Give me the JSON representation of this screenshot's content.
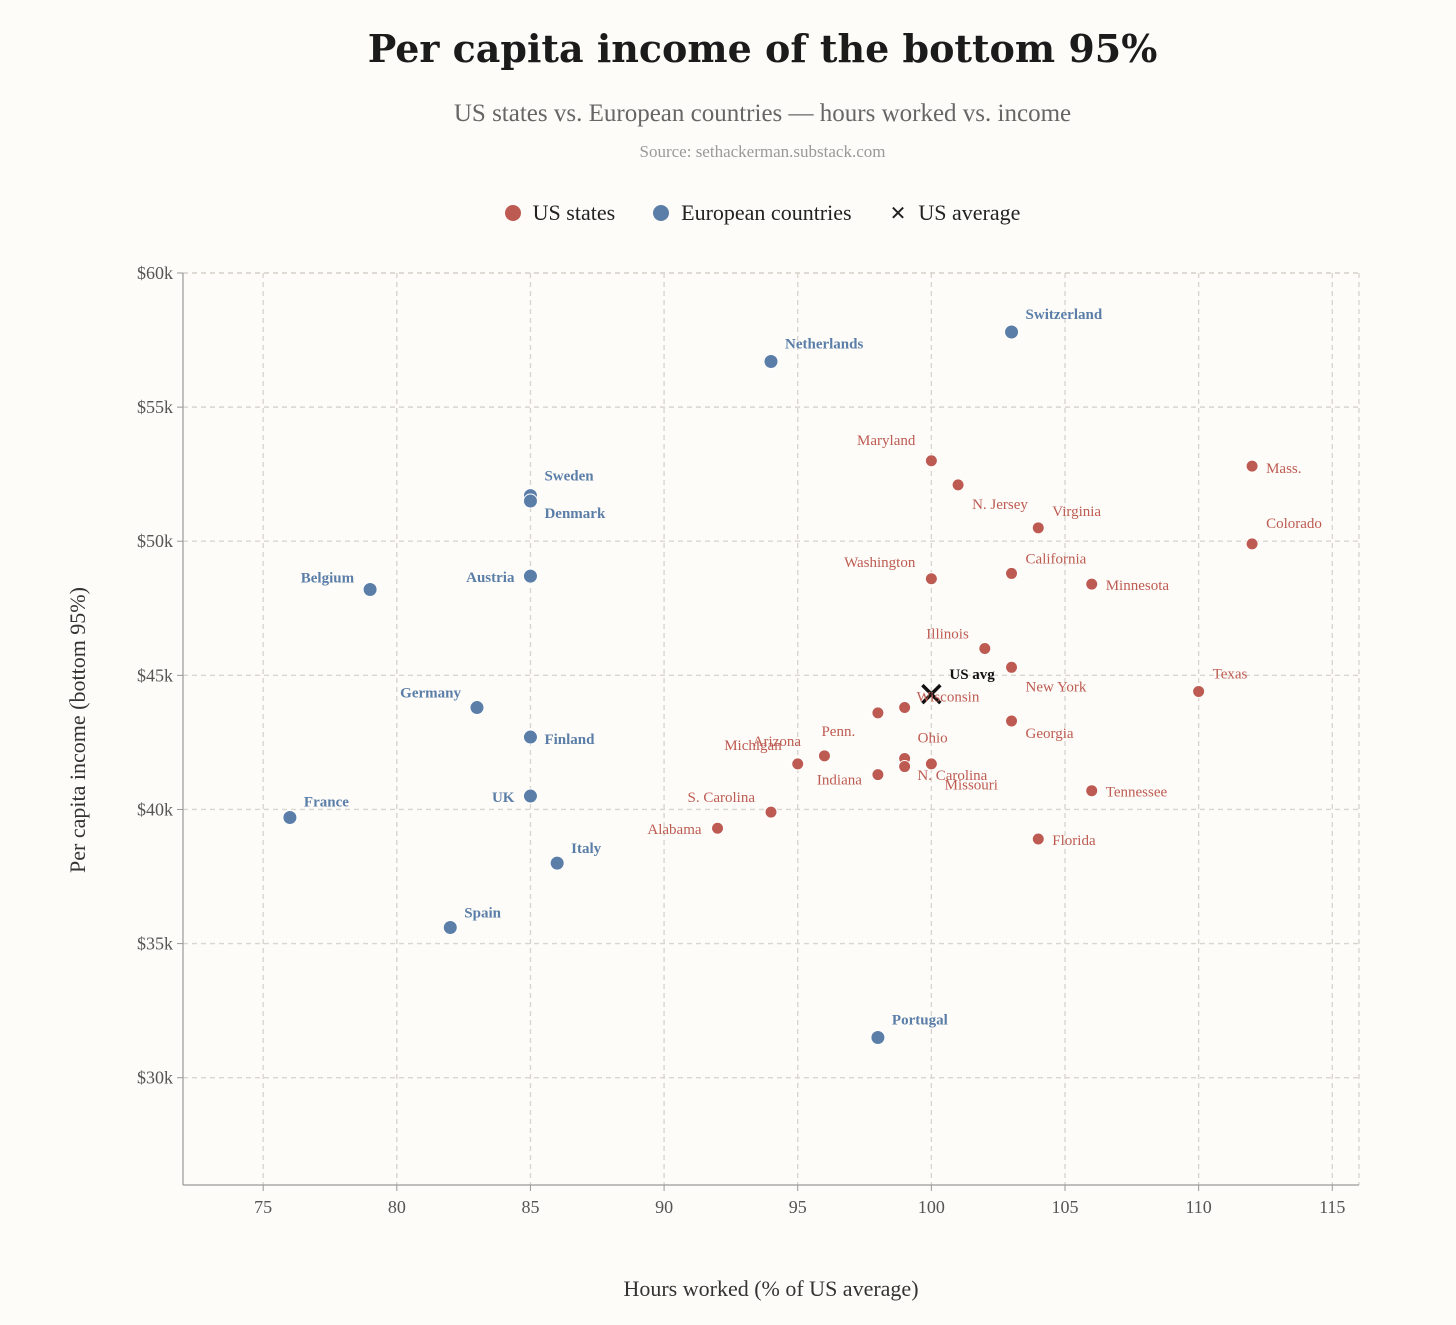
{
  "title": "Per capita income of the bottom 95%",
  "subtitle": "US states vs. European countries — hours worked vs. income",
  "source": "Source: sethackerman.substack.com",
  "legend": {
    "us_states": "US states",
    "european": "European countries",
    "us_average": "US average"
  },
  "colors": {
    "us_states": "#bd5b52",
    "european": "#5b7ea8",
    "us_average": "#111111",
    "grid": "#d9d6cf",
    "axis": "#999999"
  },
  "chart_data": {
    "type": "scatter",
    "title": "Per capita income of the bottom 95%",
    "xlabel": "Hours worked (% of US average)",
    "ylabel": "Per capita income (bottom 95%)",
    "xlim": [
      72,
      116
    ],
    "ylim": [
      26,
      60
    ],
    "grid": true,
    "legend_position": "top",
    "x_ticks": [
      75,
      80,
      85,
      90,
      95,
      100,
      105,
      110,
      115
    ],
    "x_tick_labels": [
      "75",
      "80",
      "85",
      "90",
      "95",
      "100",
      "105",
      "110",
      "115"
    ],
    "y_ticks": [
      30,
      35,
      40,
      45,
      50,
      55,
      60
    ],
    "y_tick_labels": [
      "$30k",
      "$35k",
      "$40k",
      "$45k",
      "$50k",
      "$55k",
      "$60k"
    ],
    "series": [
      {
        "name": "US states",
        "points": [
          {
            "label": "Maryland",
            "x": 100,
            "y": 53.0
          },
          {
            "label": "N. Jersey",
            "x": 101,
            "y": 52.1
          },
          {
            "label": "Mass.",
            "x": 112,
            "y": 52.8
          },
          {
            "label": "Virginia",
            "x": 104,
            "y": 50.5
          },
          {
            "label": "Colorado",
            "x": 112,
            "y": 49.9
          },
          {
            "label": "Washington",
            "x": 100,
            "y": 48.6
          },
          {
            "label": "California",
            "x": 103,
            "y": 48.8
          },
          {
            "label": "Minnesota",
            "x": 106,
            "y": 48.4
          },
          {
            "label": "Illinois",
            "x": 102,
            "y": 46.0
          },
          {
            "label": "New York",
            "x": 103,
            "y": 45.3
          },
          {
            "label": "Texas",
            "x": 110,
            "y": 44.4
          },
          {
            "label": "Wisconsin",
            "x": 99,
            "y": 43.8
          },
          {
            "label": "",
            "x": 98,
            "y": 43.6
          },
          {
            "label": "Georgia",
            "x": 103,
            "y": 43.3
          },
          {
            "label": "Penn.",
            "x": 96,
            "y": 42.0
          },
          {
            "label": "Ohio",
            "x": 99,
            "y": 41.9
          },
          {
            "label": "Arizona",
            "x": 95,
            "y": 41.7
          },
          {
            "label": "Michigan",
            "x": 95,
            "y": 41.7
          },
          {
            "label": "N. Carolina",
            "x": 100,
            "y": 41.7
          },
          {
            "label": "Missouri",
            "x": 99,
            "y": 41.6
          },
          {
            "label": "Indiana",
            "x": 98,
            "y": 41.3
          },
          {
            "label": "Tennessee",
            "x": 106,
            "y": 40.7
          },
          {
            "label": "S. Carolina",
            "x": 94,
            "y": 39.9
          },
          {
            "label": "Alabama",
            "x": 92,
            "y": 39.3
          },
          {
            "label": "Florida",
            "x": 104,
            "y": 38.9
          }
        ]
      },
      {
        "name": "European countries",
        "points": [
          {
            "label": "Switzerland",
            "x": 103,
            "y": 57.8
          },
          {
            "label": "Netherlands",
            "x": 94,
            "y": 56.7
          },
          {
            "label": "Sweden",
            "x": 85,
            "y": 51.7
          },
          {
            "label": "Denmark",
            "x": 85,
            "y": 51.5
          },
          {
            "label": "Austria",
            "x": 85,
            "y": 48.7
          },
          {
            "label": "Belgium",
            "x": 79,
            "y": 48.2
          },
          {
            "label": "Germany",
            "x": 83,
            "y": 43.8
          },
          {
            "label": "Finland",
            "x": 85,
            "y": 42.7
          },
          {
            "label": "UK",
            "x": 85,
            "y": 40.5
          },
          {
            "label": "France",
            "x": 76,
            "y": 39.7
          },
          {
            "label": "Italy",
            "x": 86,
            "y": 38.0
          },
          {
            "label": "Spain",
            "x": 82,
            "y": 35.6
          },
          {
            "label": "Portugal",
            "x": 98,
            "y": 31.5
          }
        ]
      },
      {
        "name": "US average",
        "points": [
          {
            "label": "US avg",
            "x": 100,
            "y": 44.3
          }
        ]
      }
    ]
  }
}
